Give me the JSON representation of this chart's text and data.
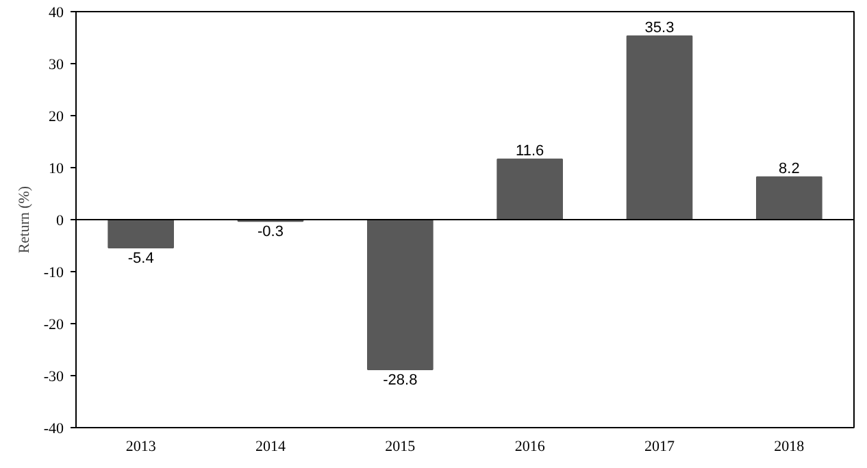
{
  "chart_data": {
    "type": "bar",
    "ylabel": "Return (%)",
    "categories": [
      "2013",
      "2014",
      "2015",
      "2016",
      "2017",
      "2018"
    ],
    "values": [
      -5.4,
      -0.3,
      -28.8,
      11.6,
      35.3,
      8.2
    ],
    "color": "#595959",
    "data_labels": true,
    "ref_lines": [
      {
        "axis": "y",
        "value": 0,
        "color": "#000000"
      }
    ],
    "ylim": [
      -40,
      40
    ],
    "yticks": [
      -40,
      -30,
      -20,
      -10,
      0,
      10,
      20,
      30,
      40
    ]
  }
}
